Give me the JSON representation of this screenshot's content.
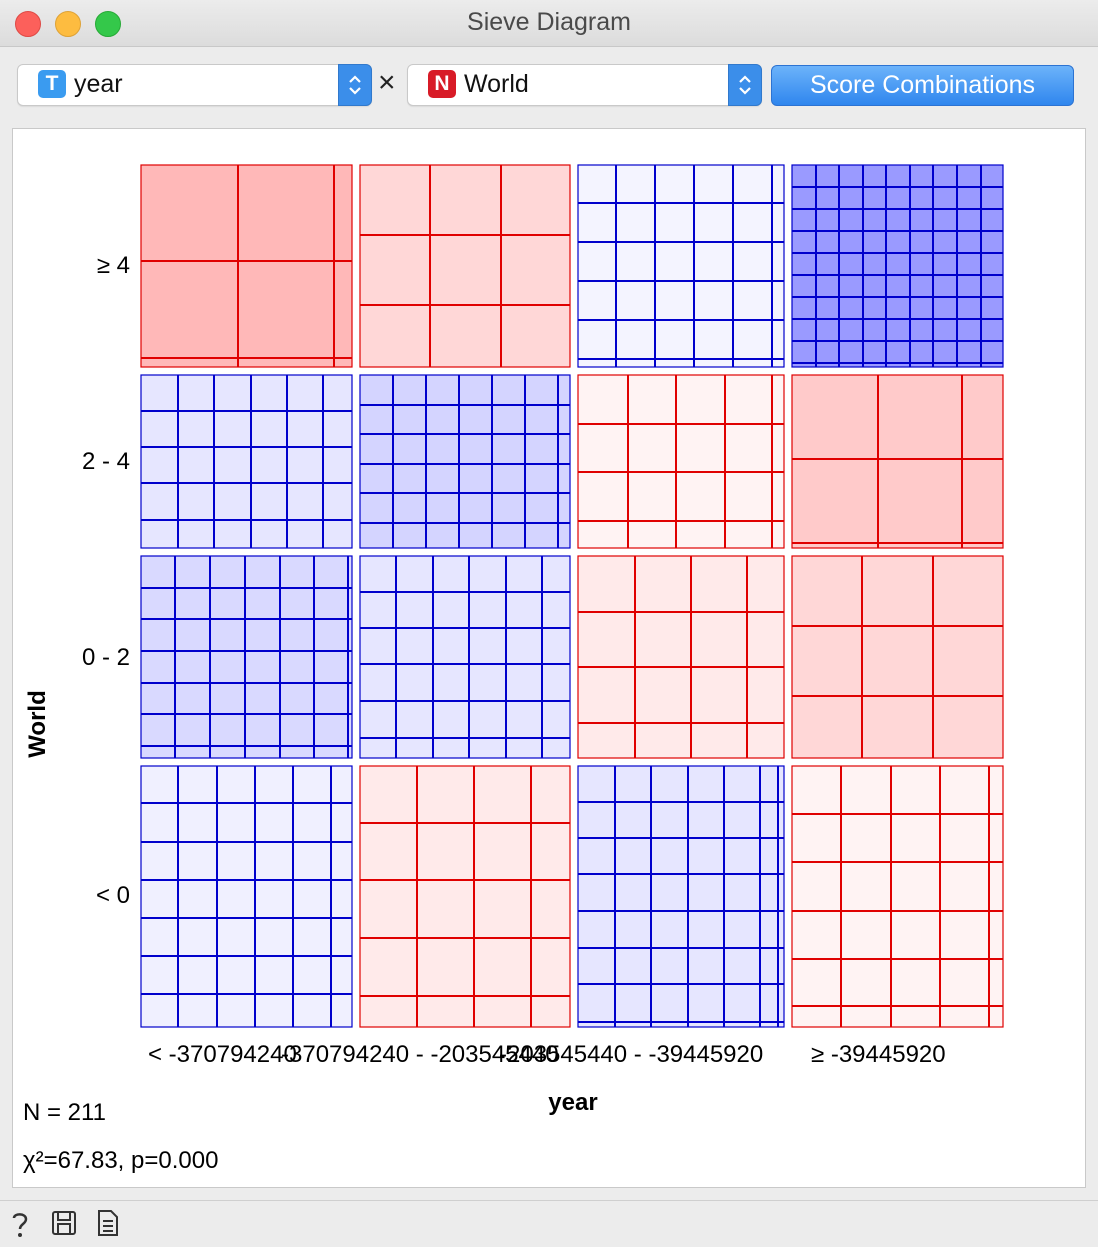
{
  "window": {
    "title": "Sieve Diagram"
  },
  "controls": {
    "attr_x": {
      "badge": "T",
      "badge_color": "#3a9bf0",
      "value": "year"
    },
    "times": "×",
    "attr_y": {
      "badge": "N",
      "badge_color": "#d81b27",
      "value": "World"
    },
    "score_button": "Score Combinations"
  },
  "chart_data": {
    "type": "sieve",
    "xlabel": "year",
    "ylabel": "World",
    "x_categories": [
      "< -370794240",
      "-370794240 - -203545440",
      "-203545440 - -39445920",
      "≥ -39445920"
    ],
    "y_categories": [
      "≥ 4",
      "2 - 4",
      "0 - 2",
      "< 0"
    ],
    "x_tick_labels": [
      "< -370794240",
      "-370794240 - -203545440",
      "-203545440 - -39445920",
      "≥ -39445920"
    ],
    "cells_observed_sign": [
      [
        "red",
        "red",
        "blue",
        "blue"
      ],
      [
        "blue",
        "blue",
        "red",
        "red"
      ],
      [
        "blue",
        "blue",
        "red",
        "red"
      ],
      [
        "blue",
        "red",
        "blue",
        "red"
      ]
    ],
    "colors": {
      "positive_residual": "#ff0000",
      "negative_residual": "#0000ff"
    }
  },
  "stats": {
    "n": "N = 211",
    "chi": "χ²=67.83, p=0.000"
  },
  "statusbar": {
    "icons": [
      "help-icon",
      "save-icon",
      "report-icon"
    ]
  }
}
